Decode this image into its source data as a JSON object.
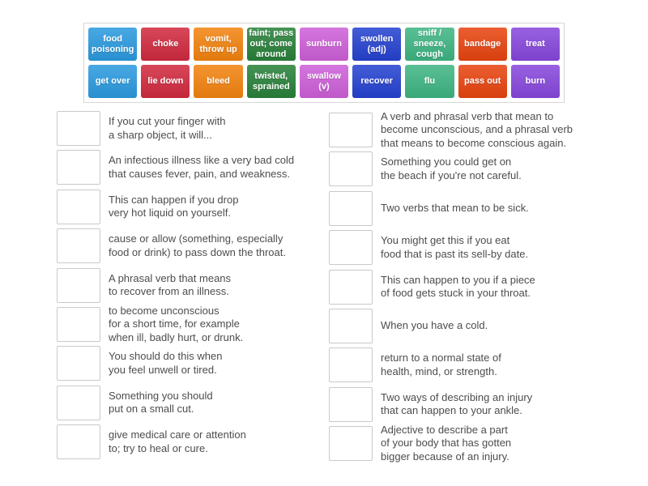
{
  "activity": {
    "type_label": "match-up",
    "accent_border_color": "#d6d6d6",
    "slot_border_color": "#c9c9c9",
    "clue_text_color": "#4d4d4d"
  },
  "tiles": {
    "row1": [
      {
        "label": "food poisoning",
        "color": "#2b9adf"
      },
      {
        "label": "choke",
        "color": "#d12a3f"
      },
      {
        "label": "vomit, throw up",
        "color": "#f3830f"
      },
      {
        "label": "faint; pass out; come around",
        "color": "#28813a"
      },
      {
        "label": "sunburn",
        "color": "#ce5fd9"
      },
      {
        "label": "swollen (adj)",
        "color": "#2542d0"
      },
      {
        "label": "sniff / sneeze, cough",
        "color": "#3eb583"
      },
      {
        "label": "bandage",
        "color": "#e8440f"
      },
      {
        "label": "treat",
        "color": "#8747dc"
      }
    ],
    "row2": [
      {
        "label": "get over",
        "color": "#2b9adf"
      },
      {
        "label": "lie down",
        "color": "#d12a3f"
      },
      {
        "label": "bleed",
        "color": "#f3830f"
      },
      {
        "label": "twisted, sprained",
        "color": "#28813a"
      },
      {
        "label": "swallow (v)",
        "color": "#ce5fd9"
      },
      {
        "label": "recover",
        "color": "#2542d0"
      },
      {
        "label": "flu",
        "color": "#3eb583"
      },
      {
        "label": "pass out",
        "color": "#e8440f"
      },
      {
        "label": "burn",
        "color": "#8747dc"
      }
    ]
  },
  "match_list": {
    "left_column": [
      {
        "text": "If you cut your finger with\na sharp object, it will..."
      },
      {
        "text": "An infectious illness like a very bad cold\nthat causes fever, pain, and weakness."
      },
      {
        "text": "This can happen if you drop\nvery hot liquid on yourself."
      },
      {
        "text": "cause or allow (something, especially\nfood or drink) to pass down the throat."
      },
      {
        "text": "A phrasal verb that means\nto recover from an illness."
      },
      {
        "text": "to become unconscious\nfor a short time, for example\nwhen ill, badly hurt, or drunk."
      },
      {
        "text": "You should do this when\nyou feel unwell or tired."
      },
      {
        "text": "Something you should\nput on a small cut."
      },
      {
        "text": "give medical care or attention\nto; try to heal or cure."
      }
    ],
    "right_column": [
      {
        "text": "A verb and phrasal verb that mean to\nbecome unconscious, and a phrasal verb\nthat means to become conscious again."
      },
      {
        "text": "Something you could get on\nthe beach if you're not careful."
      },
      {
        "text": "Two verbs that mean to be sick."
      },
      {
        "text": "You might get this if you eat\nfood that is past its sell-by date."
      },
      {
        "text": "This can happen to you if a piece\nof food gets stuck in your throat."
      },
      {
        "text": "When you have a cold."
      },
      {
        "text": "return to a normal state of\nhealth, mind, or strength."
      },
      {
        "text": "Two ways of describing an injury\nthat can happen to your ankle."
      },
      {
        "text": "Adjective to describe a part\nof your body that has gotten\nbigger because of an injury."
      }
    ]
  }
}
